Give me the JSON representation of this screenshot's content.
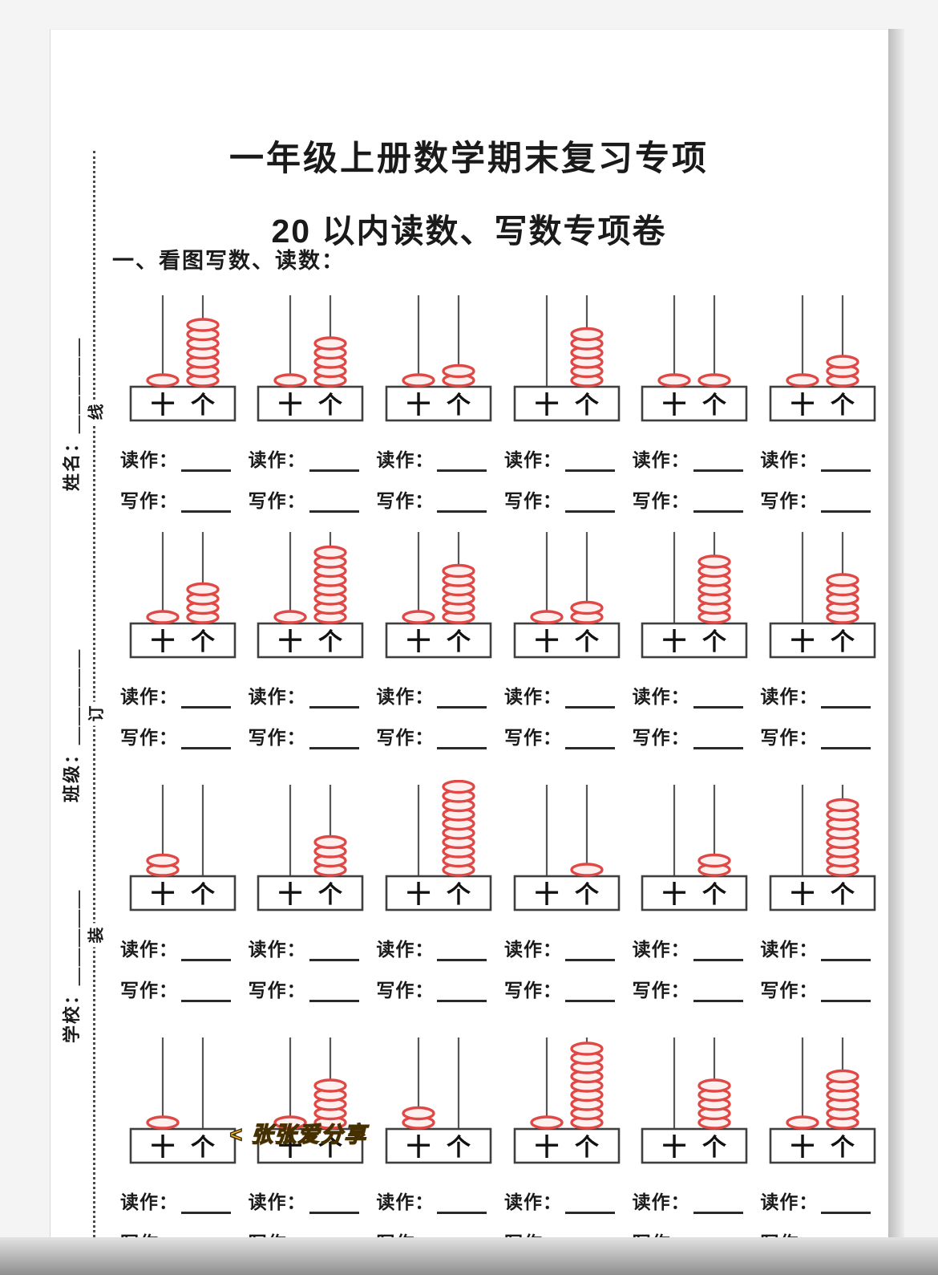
{
  "page": {
    "title": "一年级上册数学期末复习专项",
    "subtitle": "20 以内读数、写数专项卷",
    "section_heading": "一、看图写数、读数："
  },
  "margin": {
    "name_label": "姓名：＿＿＿＿＿",
    "class_label": "班级：＿＿＿＿＿",
    "school_label": "学校：＿＿＿＿＿",
    "binding_chars": [
      "线",
      "订",
      "装"
    ]
  },
  "watermark": {
    "text": "< 张张爱分享",
    "color": "#ffc32c"
  },
  "abacus": {
    "tens_label": "十",
    "ones_label": "个",
    "read_label": "读作：",
    "write_label": "写作：",
    "bead_color": "#e04846",
    "rows": [
      [
        {
          "tens": 1,
          "ones": 7,
          "value": 17
        },
        {
          "tens": 1,
          "ones": 5,
          "value": 15
        },
        {
          "tens": 1,
          "ones": 2,
          "value": 12
        },
        {
          "tens": 0,
          "ones": 6,
          "value": 6
        },
        {
          "tens": 1,
          "ones": 1,
          "value": 11
        },
        {
          "tens": 1,
          "ones": 3,
          "value": 13
        }
      ],
      [
        {
          "tens": 1,
          "ones": 4,
          "value": 14
        },
        {
          "tens": 1,
          "ones": 8,
          "value": 18
        },
        {
          "tens": 1,
          "ones": 6,
          "value": 16
        },
        {
          "tens": 1,
          "ones": 2,
          "value": 12
        },
        {
          "tens": 0,
          "ones": 7,
          "value": 7
        },
        {
          "tens": 0,
          "ones": 5,
          "value": 5
        }
      ],
      [
        {
          "tens": 2,
          "ones": 0,
          "value": 20
        },
        {
          "tens": 0,
          "ones": 4,
          "value": 4
        },
        {
          "tens": 0,
          "ones": 10,
          "value": 10
        },
        {
          "tens": 0,
          "ones": 1,
          "value": 1
        },
        {
          "tens": 0,
          "ones": 2,
          "value": 2
        },
        {
          "tens": 0,
          "ones": 8,
          "value": 8
        }
      ],
      [
        {
          "tens": 1,
          "ones": 0,
          "value": 10
        },
        {
          "tens": 1,
          "ones": 5,
          "value": 15
        },
        {
          "tens": 2,
          "ones": 0,
          "value": 20
        },
        {
          "tens": 1,
          "ones": 9,
          "value": 19
        },
        {
          "tens": 0,
          "ones": 5,
          "value": 5
        },
        {
          "tens": 1,
          "ones": 6,
          "value": 16
        }
      ]
    ]
  }
}
